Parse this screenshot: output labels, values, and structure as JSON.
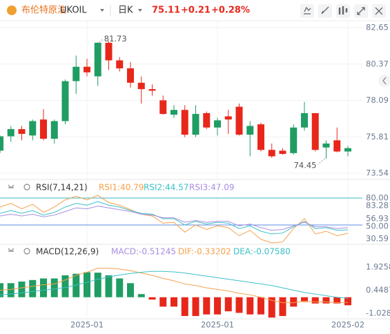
{
  "header": {
    "name": "布伦特原油",
    "symbol": "UKOIL",
    "period": "日K",
    "price": "75.11",
    "change": "+0.21",
    "change_pct": "+0.28%"
  },
  "chart_data": [
    {
      "type": "candlestick",
      "up_color": "#1f9d63",
      "down_color": "#e8271b",
      "grid": true,
      "ylim": [
        73.24,
        83.08
      ],
      "yticks": [
        82.65,
        80.37,
        78.09,
        75.81,
        73.54
      ],
      "categories": [
        null,
        null,
        null,
        null,
        null,
        null,
        null,
        null,
        "2025-01",
        null,
        null,
        null,
        null,
        null,
        null,
        null,
        null,
        null,
        null,
        null,
        "2025-01",
        null,
        null,
        null,
        null,
        null,
        null,
        null,
        null,
        null,
        null,
        null,
        "2025-02"
      ],
      "ohlc": [
        [
          74.95,
          75.9,
          74.8,
          75.85
        ],
        [
          75.85,
          76.5,
          75.5,
          76.3
        ],
        [
          76.3,
          76.5,
          75.6,
          76.0
        ],
        [
          75.9,
          76.9,
          75.6,
          76.8
        ],
        [
          76.9,
          77.55,
          75.6,
          75.7
        ],
        [
          75.7,
          76.9,
          75.4,
          76.8
        ],
        [
          76.8,
          79.4,
          76.6,
          79.3
        ],
        [
          79.3,
          80.9,
          78.5,
          80.2
        ],
        [
          80.2,
          80.7,
          79.6,
          79.85
        ],
        [
          79.6,
          81.73,
          79.0,
          81.7
        ],
        [
          81.7,
          81.8,
          80.0,
          80.6
        ],
        [
          80.6,
          80.8,
          79.9,
          80.1
        ],
        [
          80.1,
          80.5,
          78.9,
          79.2
        ],
        [
          79.2,
          79.6,
          77.9,
          78.8
        ],
        [
          78.8,
          79.1,
          78.4,
          78.7
        ],
        [
          78.1,
          78.4,
          77.2,
          77.25
        ],
        [
          77.2,
          77.8,
          77.0,
          77.5
        ],
        [
          77.5,
          77.8,
          75.8,
          75.95
        ],
        [
          75.95,
          77.8,
          75.8,
          77.25
        ],
        [
          77.3,
          77.4,
          76.3,
          76.4
        ],
        [
          76.4,
          77.0,
          75.9,
          76.85
        ],
        [
          77.1,
          77.5,
          76.0,
          76.9
        ],
        [
          77.7,
          77.9,
          75.9,
          75.95
        ],
        [
          75.95,
          76.8,
          74.6,
          76.5
        ],
        [
          76.6,
          76.7,
          74.9,
          75.0
        ],
        [
          75.0,
          75.4,
          74.5,
          74.6
        ],
        [
          74.95,
          75.1,
          74.7,
          74.75
        ],
        [
          74.8,
          76.6,
          74.7,
          76.4
        ],
        [
          76.4,
          78.0,
          76.2,
          77.3
        ],
        [
          77.3,
          77.3,
          74.9,
          75.0
        ],
        [
          75.15,
          75.6,
          74.45,
          75.4
        ],
        [
          75.6,
          76.4,
          74.85,
          74.9
        ],
        [
          74.9,
          75.25,
          74.6,
          75.11
        ]
      ],
      "annotations": [
        {
          "text": "81.73",
          "value": 81.73,
          "index": 9
        },
        {
          "text": "74.45",
          "value": 74.45,
          "index": 30
        }
      ]
    },
    {
      "type": "line",
      "title": "RSI(7,14,21)",
      "ylim": [
        30,
        99.2
      ],
      "yticks": [
        {
          "value": 80,
          "label": "80.00"
        },
        83.28,
        56.93,
        {
          "value": 50,
          "label": "50.00"
        },
        30.59
      ],
      "hlines": [
        {
          "value": 80,
          "color": "#3cb4c8"
        },
        {
          "value": 50,
          "color": "#5b8ee6"
        }
      ],
      "series": [
        {
          "name": "RSI1:40.79",
          "color": "#f5a04a",
          "values": [
            70,
            74,
            68,
            73,
            64,
            70,
            78,
            82,
            78,
            83,
            75,
            72,
            67,
            62,
            60,
            52,
            53,
            42,
            50,
            45,
            49,
            47,
            38,
            44,
            34,
            30,
            31,
            46,
            57,
            40,
            43,
            38,
            40.79
          ]
        },
        {
          "name": "RSI2:44.57",
          "color": "#3cc0c8",
          "values": [
            63,
            66,
            63,
            66,
            61,
            64,
            70,
            74,
            72,
            76,
            72,
            70,
            66,
            63,
            62,
            57,
            57,
            50,
            54,
            51,
            53,
            52,
            46,
            49,
            43,
            40,
            41,
            48,
            54,
            46,
            47,
            44,
            44.57
          ]
        },
        {
          "name": "RSI3:47.09",
          "color": "#a98ee0",
          "values": [
            60,
            62,
            60,
            62,
            59,
            61,
            65,
            69,
            68,
            71,
            69,
            67,
            65,
            62,
            61,
            58,
            58,
            53,
            55,
            53,
            54,
            54,
            49,
            51,
            47,
            44,
            45,
            49,
            53,
            48,
            48,
            46,
            47.09
          ]
        }
      ]
    },
    {
      "type": "macd",
      "title": "MACD(12,26,9)",
      "ylim": [
        -1.38,
        2.59
      ],
      "yticks": [
        1.92586,
        0.44876,
        -1.02834
      ],
      "up_color": "#1f9d63",
      "down_color": "#e8271b",
      "bars": {
        "name": "MACD:-0.51245",
        "color": "#a98ee0",
        "values": [
          0.9,
          0.9,
          1.0,
          1.1,
          1.2,
          1.2,
          1.4,
          1.5,
          1.6,
          1.57,
          1.4,
          1.2,
          0.9,
          0.2,
          -0.15,
          -0.6,
          -0.6,
          -1.2,
          -1.2,
          -1.1,
          -1.1,
          -0.9,
          -1.0,
          -1.1,
          -1.1,
          -1.3,
          -1.2,
          -0.6,
          -0.3,
          -0.4,
          -0.4,
          -0.4,
          -0.51245
        ]
      },
      "series": [
        {
          "name": "DIF:-0.33202",
          "color": "#f5a04a",
          "values": [
            0.45,
            0.5,
            0.6,
            0.7,
            0.8,
            0.85,
            1.1,
            1.4,
            1.6,
            1.85,
            1.85,
            1.8,
            1.7,
            1.55,
            1.4,
            1.2,
            1.05,
            0.85,
            0.75,
            0.6,
            0.5,
            0.4,
            0.25,
            0.15,
            0.0,
            -0.2,
            -0.35,
            -0.35,
            -0.25,
            -0.3,
            -0.3,
            -0.35,
            -0.33202
          ]
        },
        {
          "name": "DEA:-0.07580",
          "color": "#3cc0c8",
          "values": [
            0.15,
            0.2,
            0.28,
            0.36,
            0.45,
            0.52,
            0.62,
            0.78,
            0.95,
            1.15,
            1.3,
            1.42,
            1.52,
            1.6,
            1.65,
            1.65,
            1.62,
            1.55,
            1.45,
            1.35,
            1.25,
            1.15,
            1.05,
            0.95,
            0.85,
            0.75,
            0.6,
            0.45,
            0.3,
            0.2,
            0.1,
            0.0,
            -0.0758
          ]
        }
      ]
    }
  ]
}
